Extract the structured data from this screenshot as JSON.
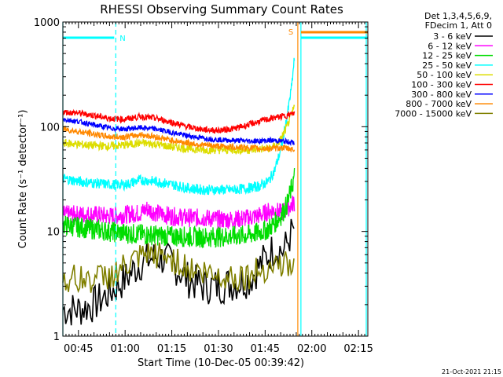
{
  "chart_data": {
    "type": "line",
    "title": "RHESSI Observing Summary Count Rates",
    "xlabel": "Start Time (10-Dec-05 00:39:42)",
    "ylabel": "Count Rate (s⁻¹ detector⁻¹)",
    "yscale": "log",
    "ylim": [
      1,
      1000
    ],
    "xlim_minutes_from_0040": [
      0,
      98
    ],
    "x_tick_labels": [
      {
        "label": "00:45",
        "minute": 5
      },
      {
        "label": "01:00",
        "minute": 20
      },
      {
        "label": "01:15",
        "minute": 35
      },
      {
        "label": "01:30",
        "minute": 50
      },
      {
        "label": "01:45",
        "minute": 65
      },
      {
        "label": "02:00",
        "minute": 80
      },
      {
        "label": "02:15",
        "minute": 95
      }
    ],
    "y_tick_labels": [
      {
        "label": "1",
        "value": 1
      },
      {
        "label": "10",
        "value": 10
      },
      {
        "label": "100",
        "value": 100
      },
      {
        "label": "1000",
        "value": 1000
      }
    ],
    "legend_header": [
      "Det 1,3,4,5,6,9,",
      "FDecim 1, Att 0"
    ],
    "series": [
      {
        "name": "3 - 6 keV",
        "color": "#000000",
        "x": [
          0,
          5,
          10,
          15,
          20,
          25,
          30,
          35,
          40,
          45,
          50,
          55,
          60,
          65,
          68,
          71,
          73,
          74.5
        ],
        "y": [
          1.8,
          1.8,
          2.0,
          2.6,
          3.5,
          5.0,
          5.8,
          5.0,
          3.5,
          3.0,
          3.0,
          3.2,
          3.5,
          5.5,
          7.0,
          6.5,
          9.0,
          11
        ]
      },
      {
        "name": "6 - 12 keV",
        "color": "#ff00ff",
        "x": [
          0,
          5,
          10,
          15,
          20,
          25,
          27,
          30,
          35,
          40,
          45,
          50,
          55,
          60,
          62,
          64,
          66,
          68,
          70,
          72,
          73.5,
          74.5
        ],
        "y": [
          14.5,
          14.5,
          14.5,
          14.0,
          14.5,
          15.0,
          16.5,
          15.0,
          14.0,
          13.5,
          13.5,
          13.0,
          13.0,
          13.5,
          14.0,
          14.5,
          15.5,
          16.0,
          15.0,
          16.5,
          18.0,
          19.0
        ]
      },
      {
        "name": "12 - 25 keV",
        "color": "#00dd00",
        "x": [
          0,
          5,
          10,
          15,
          20,
          25,
          30,
          35,
          40,
          45,
          50,
          55,
          60,
          63,
          66,
          68,
          70,
          72,
          73.5,
          74.5
        ],
        "y": [
          11.5,
          11.0,
          10.5,
          10.0,
          9.6,
          9.4,
          9.2,
          9.0,
          8.9,
          8.8,
          8.9,
          9.0,
          9.3,
          9.8,
          10.5,
          12.0,
          14.0,
          18.0,
          26.0,
          35.0
        ]
      },
      {
        "name": "25 - 50 keV",
        "color": "#00ffff",
        "x": [
          0,
          5,
          10,
          15,
          20,
          25,
          30,
          35,
          40,
          45,
          50,
          55,
          60,
          63,
          66,
          68,
          70,
          72,
          73.5,
          74.5
        ],
        "y": [
          32,
          30,
          29,
          28,
          28,
          31,
          30,
          28,
          26,
          25,
          25,
          25,
          26,
          27,
          30,
          38,
          60,
          120,
          240,
          480
        ]
      },
      {
        "name": "50 - 100 keV",
        "color": "#dddd00",
        "x": [
          0,
          5,
          10,
          15,
          20,
          25,
          30,
          35,
          40,
          45,
          50,
          55,
          60,
          63,
          66,
          68,
          70,
          72,
          73.5,
          74.5
        ],
        "y": [
          70,
          68,
          66,
          65,
          67,
          70,
          68,
          64,
          62,
          60,
          60,
          60,
          60,
          61,
          62,
          65,
          75,
          100,
          130,
          160
        ]
      },
      {
        "name": "100 - 300 keV",
        "color": "#ff0000",
        "x": [
          0,
          5,
          10,
          15,
          20,
          25,
          30,
          35,
          40,
          45,
          50,
          55,
          60,
          63,
          66,
          68,
          70,
          72,
          73.5,
          74.5
        ],
        "y": [
          138,
          135,
          128,
          120,
          118,
          125,
          120,
          110,
          100,
          94,
          92,
          96,
          105,
          112,
          118,
          122,
          125,
          128,
          132,
          135
        ]
      },
      {
        "name": "300 - 800 keV",
        "color": "#0000ff",
        "x": [
          0,
          5,
          10,
          15,
          20,
          25,
          30,
          35,
          40,
          45,
          50,
          55,
          60,
          63,
          66,
          68,
          70,
          72,
          73.5,
          74.5
        ],
        "y": [
          118,
          112,
          104,
          97,
          95,
          98,
          95,
          88,
          82,
          78,
          75,
          74,
          73,
          73,
          74,
          74,
          73,
          72,
          71,
          70
        ]
      },
      {
        "name": "800 - 7000 keV",
        "color": "#ff8800",
        "x": [
          0,
          5,
          10,
          15,
          20,
          25,
          30,
          35,
          40,
          45,
          50,
          55,
          60,
          63,
          66,
          68,
          70,
          72,
          73.5,
          74.5
        ],
        "y": [
          95,
          90,
          85,
          80,
          80,
          84,
          80,
          74,
          70,
          67,
          65,
          64,
          63,
          62,
          62,
          62,
          63,
          62,
          61,
          60
        ]
      },
      {
        "name": "7000 - 15000 keV",
        "color": "#808000",
        "x": [
          0,
          5,
          10,
          15,
          20,
          25,
          30,
          35,
          40,
          45,
          50,
          55,
          60,
          65,
          70,
          74.5
        ],
        "y": [
          3.5,
          3.5,
          3.5,
          3.8,
          4.5,
          5.5,
          6.0,
          5.5,
          4.5,
          4.0,
          3.8,
          3.7,
          3.8,
          4.5,
          5.0,
          4.5
        ]
      }
    ],
    "saa_marker_label": "N",
    "saa_marker_minute": 17,
    "flare_marker_label": "S",
    "flare_marker_minute": 75.5,
    "night_marker_minutes": [
      0,
      76.5,
      97.5
    ],
    "saa_bar_start_minute": 0,
    "saa_bar_end_minute": 17,
    "flare_bar_start_minute": 76.5,
    "flare_bar_end_minute": 98,
    "timestamp": "21-Oct-2021 21:15"
  }
}
